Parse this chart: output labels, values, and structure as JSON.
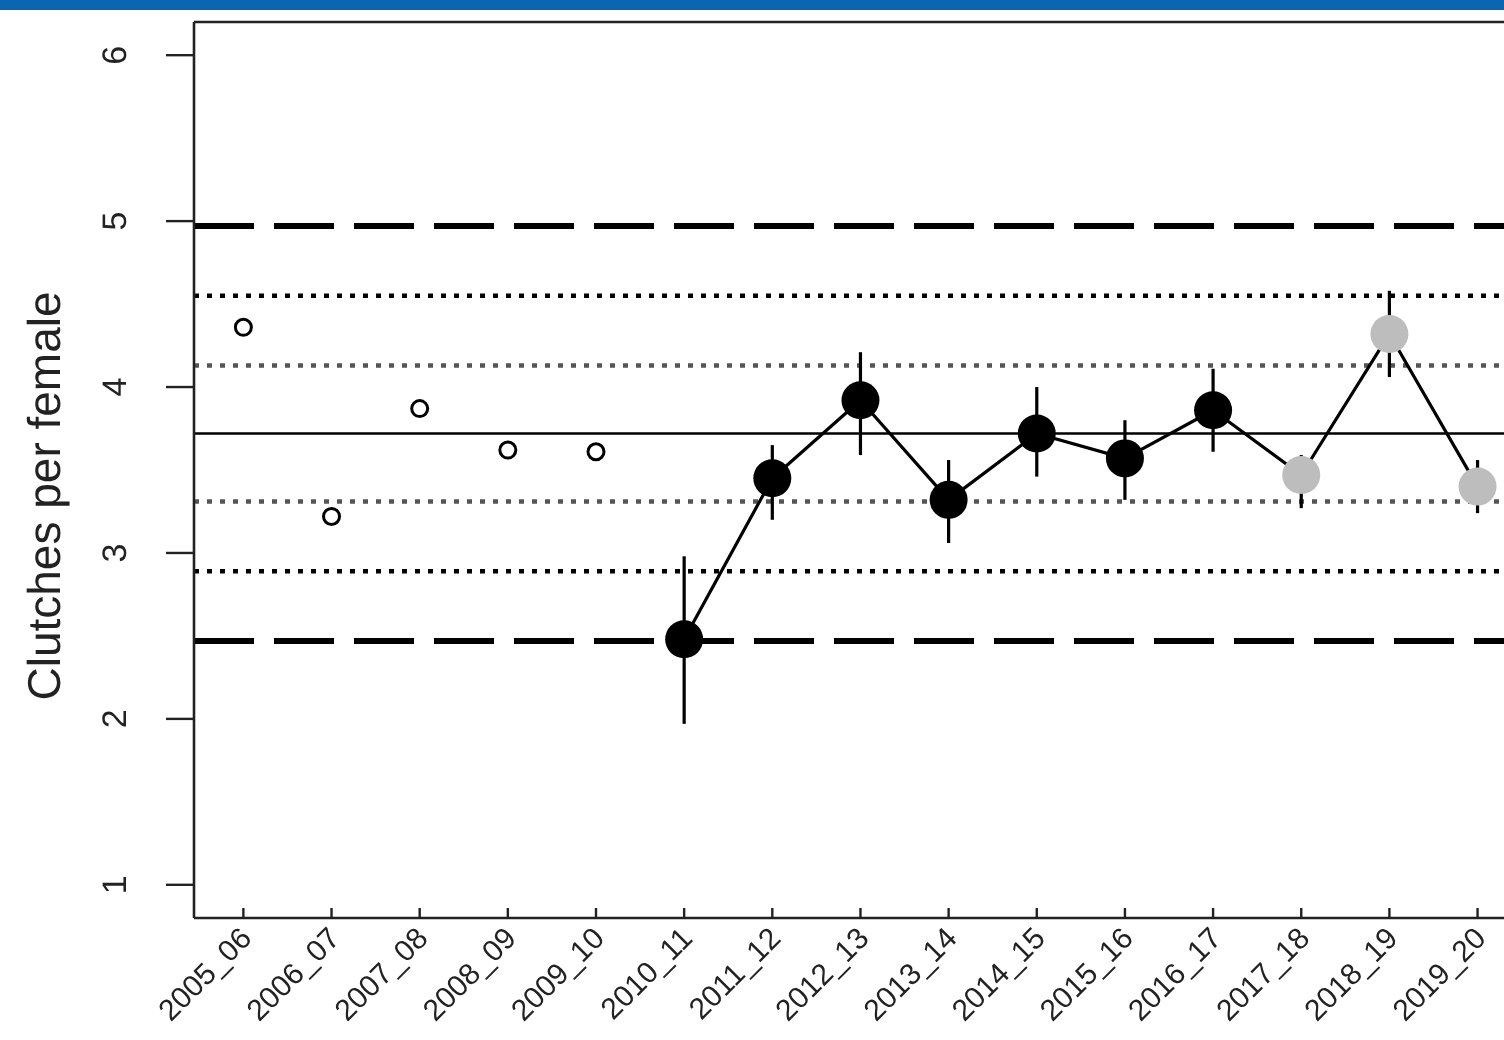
{
  "chart_data": {
    "type": "line",
    "ylabel": "Clutches per female",
    "categories": [
      "2005_06",
      "2006_07",
      "2007_08",
      "2008_09",
      "2009_10",
      "2010_11",
      "2011_12",
      "2012_13",
      "2013_14",
      "2014_15",
      "2015_16",
      "2016_17",
      "2017_18",
      "2018_19",
      "2019_20"
    ],
    "ylim": [
      0.8,
      6.2
    ],
    "yticks": [
      1,
      2,
      3,
      4,
      5,
      6
    ],
    "marker": "circle",
    "series": [
      {
        "type": "scatter",
        "color": "#000000",
        "values": [
          4.36,
          3.22,
          3.87,
          3.62,
          3.61,
          null,
          null,
          null,
          null,
          null,
          null,
          null,
          null,
          null,
          null
        ]
      },
      {
        "color": "#000000",
        "values": [
          null,
          null,
          null,
          null,
          null,
          2.48,
          3.45,
          3.92,
          3.32,
          3.72,
          3.57,
          3.86,
          3.47,
          4.32,
          3.4
        ],
        "colors": [
          null,
          null,
          null,
          null,
          null,
          "#000000",
          "#000000",
          "#000000",
          "#000000",
          "#000000",
          "#000000",
          "#000000",
          "#bdbdbd",
          "#bdbdbd",
          "#bdbdbd"
        ],
        "errors": [
          null,
          null,
          null,
          null,
          null,
          [
            1.97,
            2.98
          ],
          [
            3.2,
            3.65
          ],
          [
            3.59,
            4.21
          ],
          [
            3.06,
            3.56
          ],
          [
            3.46,
            4.0
          ],
          [
            3.32,
            3.8
          ],
          [
            3.61,
            4.11
          ],
          [
            3.27,
            3.59
          ],
          [
            4.06,
            4.58
          ],
          [
            3.24,
            3.56
          ]
        ]
      }
    ],
    "ref_lines": [
      {
        "axis": "y",
        "value": 3.72,
        "line_style": "solid",
        "color": "#000000"
      },
      {
        "axis": "y",
        "value": 4.13,
        "line_style": "dotted",
        "color": "#555555"
      },
      {
        "axis": "y",
        "value": 3.31,
        "line_style": "dotted",
        "color": "#555555"
      },
      {
        "axis": "y",
        "value": 4.55,
        "line_style": "dotted",
        "color": "#000000"
      },
      {
        "axis": "y",
        "value": 2.89,
        "line_style": "dotted",
        "color": "#000000"
      },
      {
        "axis": "y",
        "value": 4.97,
        "line_style": "dashed",
        "color": "#000000"
      },
      {
        "axis": "y",
        "value": 2.47,
        "line_style": "dashed",
        "color": "#000000"
      }
    ]
  }
}
